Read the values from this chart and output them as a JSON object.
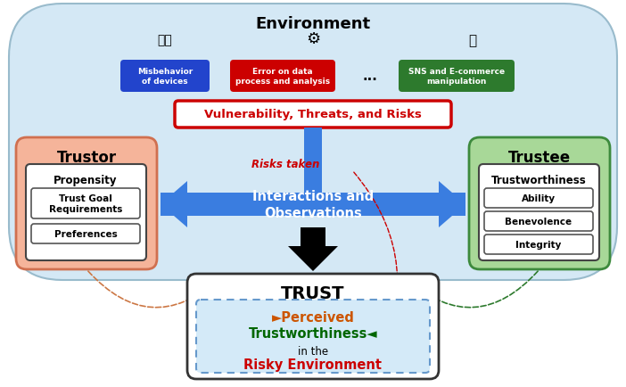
{
  "title": "Environment",
  "bg_color": "#d4e8f5",
  "vuln_text": "Vulnerability, Threats, and Risks",
  "vuln_color": "#cc0000",
  "risks_text": "Risks taken",
  "interact_text": "Interactions and\nObservations",
  "trustor_title": "Trustor",
  "trustor_bg": "#f5b49a",
  "trustor_border": "#d07050",
  "trustee_title": "Trustee",
  "trustee_bg": "#a8d898",
  "trustee_border": "#3d8a3d",
  "trust_title": "TRUST",
  "perceived_text": "►Perceived",
  "perceived_color": "#cc5500",
  "trustworthiness_text": "Trustworthiness◄",
  "trustworthiness_color": "#006600",
  "inthe_text": "in the",
  "risky_text": "Risky Environment",
  "risky_color": "#cc0000",
  "blue_arrow": "#3a7de0",
  "blue_arrow_dark": "#1a50cc"
}
